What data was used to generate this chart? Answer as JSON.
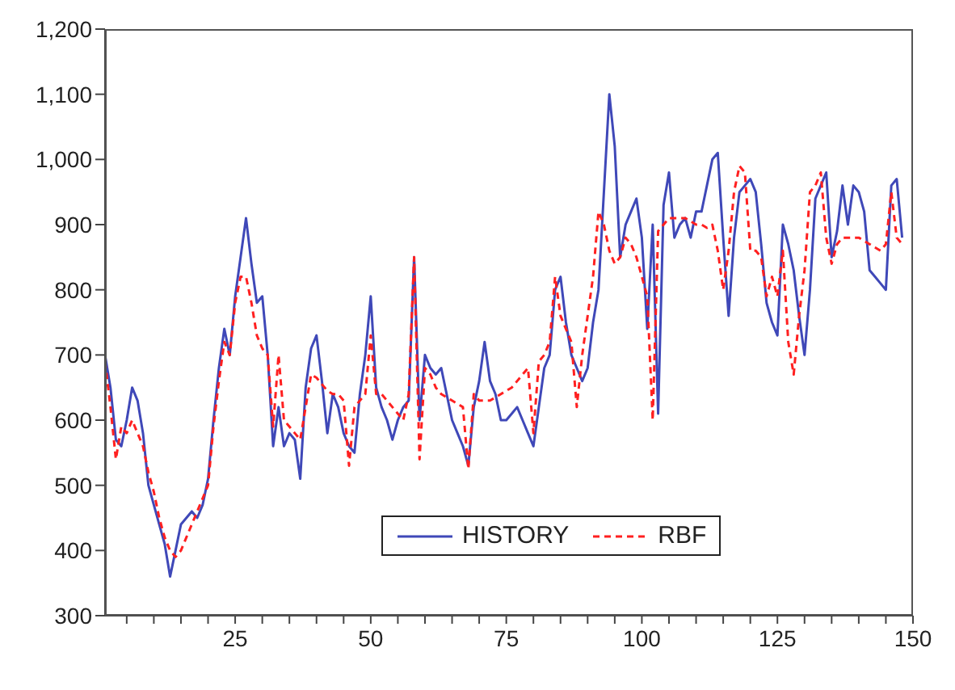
{
  "chart_data": {
    "type": "line",
    "x": [
      1,
      2,
      3,
      4,
      5,
      6,
      7,
      8,
      9,
      10,
      11,
      12,
      13,
      14,
      15,
      16,
      17,
      18,
      19,
      20,
      21,
      22,
      23,
      24,
      25,
      26,
      27,
      28,
      29,
      30,
      31,
      32,
      33,
      34,
      35,
      36,
      37,
      38,
      39,
      40,
      41,
      42,
      43,
      44,
      45,
      46,
      47,
      48,
      49,
      50,
      51,
      52,
      53,
      54,
      55,
      56,
      57,
      58,
      59,
      60,
      61,
      62,
      63,
      64,
      65,
      66,
      67,
      68,
      69,
      70,
      71,
      72,
      73,
      74,
      75,
      76,
      77,
      78,
      79,
      80,
      81,
      82,
      83,
      84,
      85,
      86,
      87,
      88,
      89,
      90,
      91,
      92,
      93,
      94,
      95,
      96,
      97,
      98,
      99,
      100,
      101,
      102,
      103,
      104,
      105,
      106,
      107,
      108,
      109,
      110,
      111,
      112,
      113,
      114,
      115,
      116,
      117,
      118,
      119,
      120,
      121,
      122,
      123,
      124,
      125,
      126,
      127,
      128,
      129,
      130,
      131,
      132,
      133,
      134,
      135,
      136,
      137,
      138,
      139,
      140,
      141,
      142,
      143,
      144,
      145,
      146,
      147,
      148
    ],
    "series": [
      {
        "name": "HISTORY",
        "color": "#3f48b8",
        "line_style": "solid",
        "values": [
          700,
          650,
          570,
          560,
          600,
          650,
          630,
          580,
          500,
          470,
          440,
          410,
          360,
          400,
          440,
          450,
          460,
          450,
          470,
          510,
          600,
          680,
          740,
          700,
          790,
          850,
          910,
          840,
          780,
          790,
          700,
          560,
          620,
          560,
          580,
          570,
          510,
          650,
          710,
          730,
          660,
          580,
          640,
          620,
          580,
          560,
          550,
          640,
          700,
          790,
          650,
          620,
          600,
          570,
          600,
          620,
          630,
          850,
          600,
          700,
          680,
          670,
          680,
          640,
          600,
          580,
          560,
          530,
          620,
          660,
          720,
          660,
          640,
          600,
          600,
          610,
          620,
          600,
          580,
          560,
          620,
          680,
          700,
          800,
          820,
          750,
          700,
          680,
          660,
          680,
          750,
          800,
          950,
          1100,
          1020,
          850,
          900,
          920,
          940,
          880,
          740,
          900,
          610,
          930,
          980,
          880,
          900,
          910,
          880,
          920,
          920,
          960,
          1000,
          1010,
          880,
          760,
          880,
          950,
          960,
          970,
          950,
          870,
          780,
          750,
          730,
          900,
          870,
          830,
          760,
          700,
          800,
          940,
          960,
          980,
          850,
          890,
          960,
          900,
          960,
          950,
          920,
          830,
          820,
          810,
          800,
          960,
          970,
          880
        ]
      },
      {
        "name": "RBF",
        "color": "#ff2020",
        "line_style": "dashed",
        "values": [
          690,
          620,
          540,
          590,
          580,
          600,
          580,
          560,
          520,
          490,
          450,
          420,
          400,
          390,
          400,
          420,
          440,
          460,
          480,
          500,
          590,
          660,
          720,
          700,
          780,
          820,
          820,
          780,
          730,
          710,
          700,
          590,
          700,
          600,
          590,
          580,
          570,
          620,
          670,
          665,
          655,
          645,
          640,
          640,
          630,
          530,
          620,
          630,
          640,
          730,
          640,
          640,
          630,
          620,
          610,
          600,
          640,
          850,
          540,
          680,
          670,
          650,
          640,
          635,
          630,
          625,
          620,
          525,
          640,
          630,
          630,
          630,
          635,
          640,
          645,
          650,
          660,
          670,
          680,
          580,
          690,
          700,
          720,
          820,
          760,
          740,
          720,
          620,
          700,
          760,
          820,
          920,
          900,
          860,
          840,
          850,
          880,
          870,
          850,
          820,
          790,
          600,
          890,
          900,
          910,
          910,
          910,
          910,
          905,
          900,
          900,
          895,
          900,
          860,
          800,
          860,
          950,
          990,
          980,
          860,
          860,
          850,
          790,
          820,
          790,
          860,
          720,
          670,
          760,
          830,
          950,
          960,
          980,
          880,
          840,
          870,
          880,
          880,
          880,
          880,
          875,
          870,
          865,
          860,
          870,
          950,
          880,
          870
        ]
      }
    ],
    "xlim": [
      1,
      150
    ],
    "xticks": [
      {
        "value": 5,
        "label": null
      },
      {
        "value": 10,
        "label": null
      },
      {
        "value": 15,
        "label": null
      },
      {
        "value": 20,
        "label": null
      },
      25,
      {
        "value": 30,
        "label": null
      },
      {
        "value": 35,
        "label": null
      },
      {
        "value": 40,
        "label": null
      },
      {
        "value": 45,
        "label": null
      },
      50,
      {
        "value": 55,
        "label": null
      },
      {
        "value": 60,
        "label": null
      },
      {
        "value": 65,
        "label": null
      },
      {
        "value": 70,
        "label": null
      },
      75,
      {
        "value": 80,
        "label": null
      },
      {
        "value": 85,
        "label": null
      },
      {
        "value": 90,
        "label": null
      },
      {
        "value": 95,
        "label": null
      },
      100,
      {
        "value": 105,
        "label": null
      },
      {
        "value": 110,
        "label": null
      },
      {
        "value": 115,
        "label": null
      },
      {
        "value": 120,
        "label": null
      },
      125,
      {
        "value": 130,
        "label": null
      },
      {
        "value": 135,
        "label": null
      },
      {
        "value": 140,
        "label": null
      },
      {
        "value": 145,
        "label": null
      },
      150
    ],
    "ylim": [
      300,
      1200
    ],
    "yticks": [
      300,
      400,
      500,
      600,
      700,
      800,
      900,
      {
        "value": 1000,
        "label": "1,000"
      },
      {
        "value": 1100,
        "label": "1,100"
      },
      {
        "value": 1200,
        "label": "1,200"
      }
    ],
    "grid": false,
    "legend": "bottom right",
    "marker": "none"
  }
}
